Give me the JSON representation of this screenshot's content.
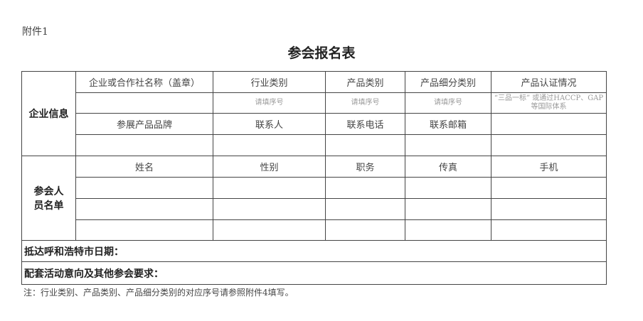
{
  "attachment_label": "附件1",
  "title": "参会报名表",
  "company_section": {
    "label": "企业信息",
    "header_row1": [
      "企业或合作社名称（盖章）",
      "行业类别",
      "产品类别",
      "产品细分类别",
      "产品认证情况"
    ],
    "hint_row": [
      "",
      "请填序号",
      "请填序号",
      "请填序号",
      "“三品一标” 或通过HACCP、GAP等国际体系"
    ],
    "header_row2": [
      "参展产品品牌",
      "联系人",
      "联系电话",
      "联系邮箱",
      ""
    ]
  },
  "attendee_section": {
    "label": "参会人员名单",
    "headers": [
      "姓名",
      "性别",
      "职务",
      "传真",
      "手机"
    ]
  },
  "arrival_date_label": "抵达呼和浩特市日期：",
  "other_requirements_label": "配套活动意向及其他参会要求：",
  "footnote": "注：行业类别、产品类别、产品细分类别的对应序号请参照附件4填写。"
}
